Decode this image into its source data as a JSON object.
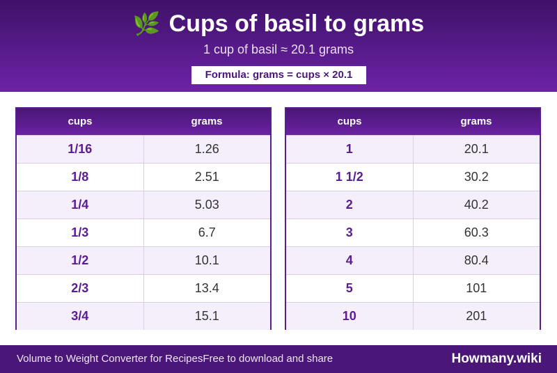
{
  "header": {
    "icon": "🌿",
    "title": "Cups of basil to grams",
    "subtitle": "1 cup of basil ≈ 20.1 grams",
    "formula": "Formula: grams = cups × 20.1"
  },
  "tables": [
    {
      "col1": "cups",
      "col2": "grams",
      "rows": [
        {
          "cups": "1/16",
          "grams": "1.26"
        },
        {
          "cups": "1/8",
          "grams": "2.51"
        },
        {
          "cups": "1/4",
          "grams": "5.03"
        },
        {
          "cups": "1/3",
          "grams": "6.7"
        },
        {
          "cups": "1/2",
          "grams": "10.1"
        },
        {
          "cups": "2/3",
          "grams": "13.4"
        },
        {
          "cups": "3/4",
          "grams": "15.1"
        }
      ]
    },
    {
      "col1": "cups",
      "col2": "grams",
      "rows": [
        {
          "cups": "1",
          "grams": "20.1"
        },
        {
          "cups": "1 1/2",
          "grams": "30.2"
        },
        {
          "cups": "2",
          "grams": "40.2"
        },
        {
          "cups": "3",
          "grams": "60.3"
        },
        {
          "cups": "4",
          "grams": "80.4"
        },
        {
          "cups": "5",
          "grams": "101"
        },
        {
          "cups": "10",
          "grams": "201"
        }
      ]
    }
  ],
  "footer": {
    "left_text_1": "Volume to Weight Converter for Recipes",
    "left_text_2": "Free to download and share",
    "brand": "Howmany.wiki"
  }
}
